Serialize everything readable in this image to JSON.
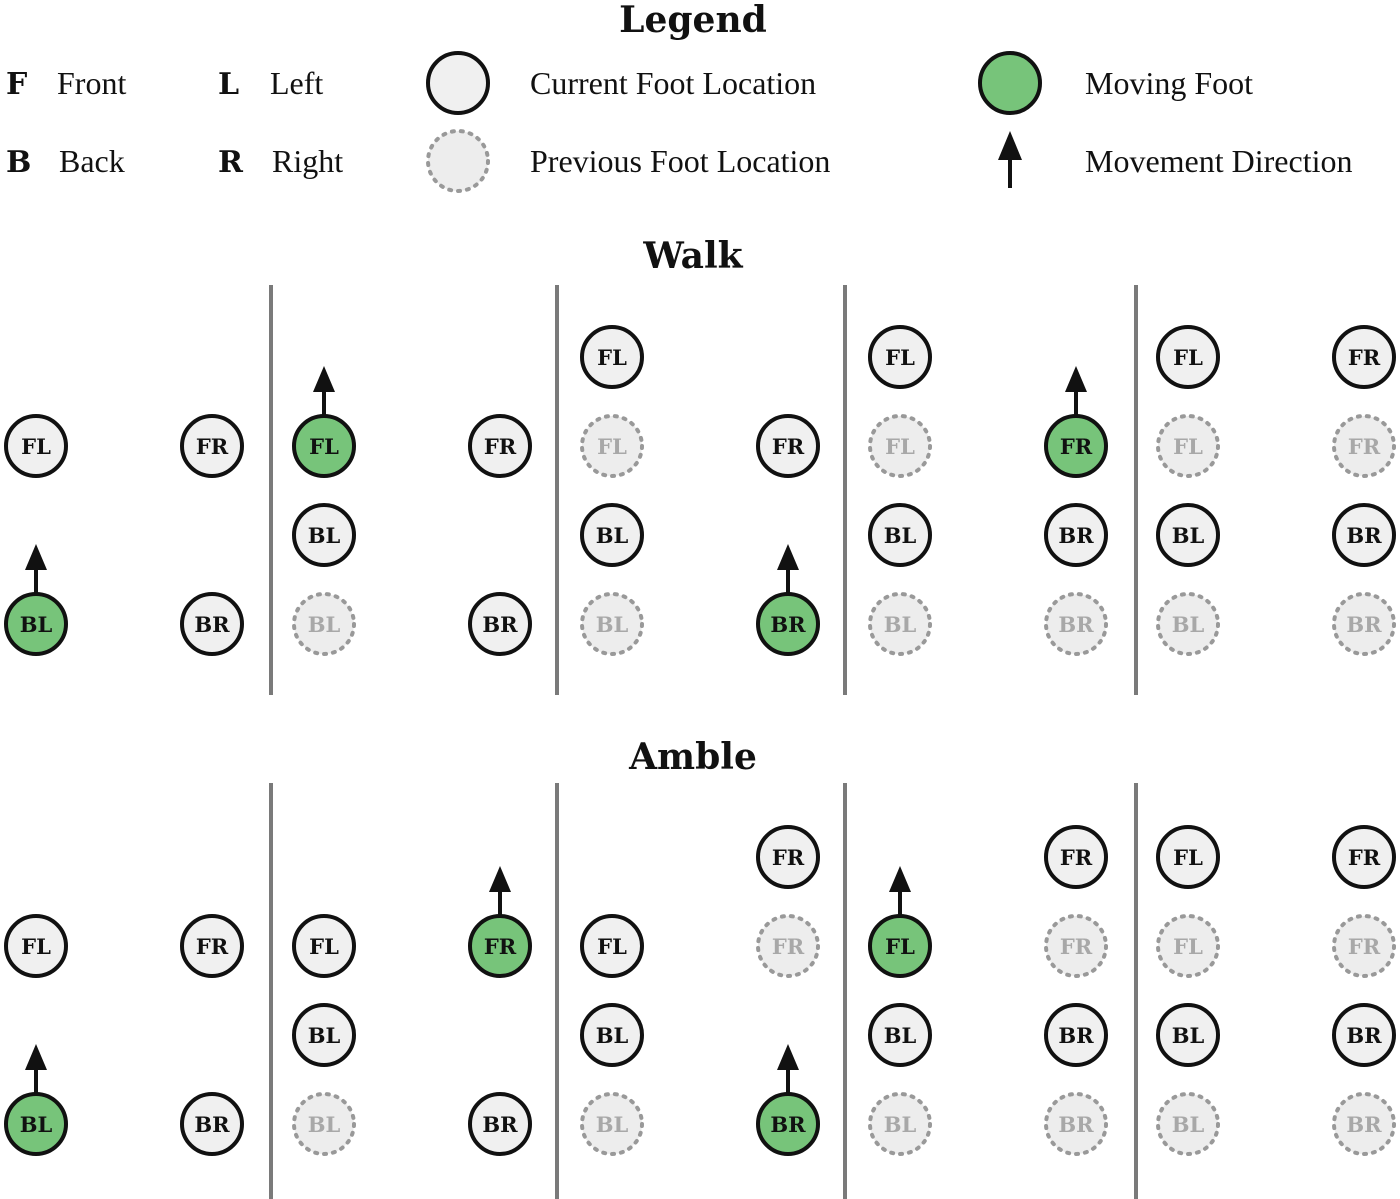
{
  "legend": {
    "title": "Legend",
    "abbreviations": [
      {
        "key": "F",
        "text": "Front"
      },
      {
        "key": "B",
        "text": "Back"
      },
      {
        "key": "L",
        "text": "Left"
      },
      {
        "key": "R",
        "text": "Right"
      }
    ],
    "symbols": [
      {
        "kind": "current",
        "text": "Current Foot Location"
      },
      {
        "kind": "previous",
        "text": "Previous Foot Location"
      },
      {
        "kind": "moving",
        "text": "Moving Foot"
      },
      {
        "kind": "arrow",
        "text": "Movement Direction"
      }
    ]
  },
  "colors": {
    "moving": "#77c47a",
    "current": "#f0f0f0",
    "previous": "#ededed",
    "stroke": "#111111",
    "previous_stroke": "#999999",
    "previous_text": "#a8a8a8",
    "divider": "#7a7a7a"
  },
  "gaits": [
    {
      "name": "Walk",
      "steps": [
        {
          "feet": [
            {
              "label": "FL",
              "state": "current",
              "col": 0,
              "row": 1
            },
            {
              "label": "FR",
              "state": "current",
              "col": 1,
              "row": 1
            },
            {
              "label": "BL",
              "state": "moving",
              "col": 0,
              "row": 3,
              "arrow": true
            },
            {
              "label": "BR",
              "state": "current",
              "col": 1,
              "row": 3
            }
          ]
        },
        {
          "feet": [
            {
              "label": "FL",
              "state": "moving",
              "col": 0,
              "row": 1,
              "arrow": true
            },
            {
              "label": "FR",
              "state": "current",
              "col": 1,
              "row": 1
            },
            {
              "label": "BL",
              "state": "current",
              "col": 0,
              "row": 2
            },
            {
              "label": "BL",
              "state": "previous",
              "col": 0,
              "row": 3
            },
            {
              "label": "BR",
              "state": "current",
              "col": 1,
              "row": 3
            }
          ]
        },
        {
          "feet": [
            {
              "label": "FL",
              "state": "current",
              "col": 0,
              "row": 0
            },
            {
              "label": "FL",
              "state": "previous",
              "col": 0,
              "row": 1
            },
            {
              "label": "FR",
              "state": "current",
              "col": 1,
              "row": 1
            },
            {
              "label": "BL",
              "state": "current",
              "col": 0,
              "row": 2
            },
            {
              "label": "BL",
              "state": "previous",
              "col": 0,
              "row": 3
            },
            {
              "label": "BR",
              "state": "moving",
              "col": 1,
              "row": 3,
              "arrow": true
            }
          ]
        },
        {
          "feet": [
            {
              "label": "FL",
              "state": "current",
              "col": 0,
              "row": 0
            },
            {
              "label": "FL",
              "state": "previous",
              "col": 0,
              "row": 1
            },
            {
              "label": "FR",
              "state": "moving",
              "col": 1,
              "row": 1,
              "arrow": true
            },
            {
              "label": "BL",
              "state": "current",
              "col": 0,
              "row": 2
            },
            {
              "label": "BR",
              "state": "current",
              "col": 1,
              "row": 2
            },
            {
              "label": "BL",
              "state": "previous",
              "col": 0,
              "row": 3
            },
            {
              "label": "BR",
              "state": "previous",
              "col": 1,
              "row": 3
            }
          ]
        },
        {
          "feet": [
            {
              "label": "FL",
              "state": "current",
              "col": 0,
              "row": 0
            },
            {
              "label": "FR",
              "state": "current",
              "col": 1,
              "row": 0
            },
            {
              "label": "FL",
              "state": "previous",
              "col": 0,
              "row": 1
            },
            {
              "label": "FR",
              "state": "previous",
              "col": 1,
              "row": 1
            },
            {
              "label": "BL",
              "state": "current",
              "col": 0,
              "row": 2
            },
            {
              "label": "BR",
              "state": "current",
              "col": 1,
              "row": 2
            },
            {
              "label": "BL",
              "state": "previous",
              "col": 0,
              "row": 3
            },
            {
              "label": "BR",
              "state": "previous",
              "col": 1,
              "row": 3
            }
          ]
        }
      ]
    },
    {
      "name": "Amble",
      "steps": [
        {
          "feet": [
            {
              "label": "FL",
              "state": "current",
              "col": 0,
              "row": 1
            },
            {
              "label": "FR",
              "state": "current",
              "col": 1,
              "row": 1
            },
            {
              "label": "BL",
              "state": "moving",
              "col": 0,
              "row": 3,
              "arrow": true
            },
            {
              "label": "BR",
              "state": "current",
              "col": 1,
              "row": 3
            }
          ]
        },
        {
          "feet": [
            {
              "label": "FL",
              "state": "current",
              "col": 0,
              "row": 1
            },
            {
              "label": "FR",
              "state": "moving",
              "col": 1,
              "row": 1,
              "arrow": true
            },
            {
              "label": "BL",
              "state": "current",
              "col": 0,
              "row": 2
            },
            {
              "label": "BL",
              "state": "previous",
              "col": 0,
              "row": 3
            },
            {
              "label": "BR",
              "state": "current",
              "col": 1,
              "row": 3
            }
          ]
        },
        {
          "feet": [
            {
              "label": "FR",
              "state": "current",
              "col": 1,
              "row": 0
            },
            {
              "label": "FL",
              "state": "current",
              "col": 0,
              "row": 1
            },
            {
              "label": "FR",
              "state": "previous",
              "col": 1,
              "row": 1
            },
            {
              "label": "BL",
              "state": "current",
              "col": 0,
              "row": 2
            },
            {
              "label": "BL",
              "state": "previous",
              "col": 0,
              "row": 3
            },
            {
              "label": "BR",
              "state": "moving",
              "col": 1,
              "row": 3,
              "arrow": true
            }
          ]
        },
        {
          "feet": [
            {
              "label": "FR",
              "state": "current",
              "col": 1,
              "row": 0
            },
            {
              "label": "FL",
              "state": "moving",
              "col": 0,
              "row": 1,
              "arrow": true
            },
            {
              "label": "FR",
              "state": "previous",
              "col": 1,
              "row": 1
            },
            {
              "label": "BL",
              "state": "current",
              "col": 0,
              "row": 2
            },
            {
              "label": "BR",
              "state": "current",
              "col": 1,
              "row": 2
            },
            {
              "label": "BL",
              "state": "previous",
              "col": 0,
              "row": 3
            },
            {
              "label": "BR",
              "state": "previous",
              "col": 1,
              "row": 3
            }
          ]
        },
        {
          "feet": [
            {
              "label": "FL",
              "state": "current",
              "col": 0,
              "row": 0
            },
            {
              "label": "FR",
              "state": "current",
              "col": 1,
              "row": 0
            },
            {
              "label": "FL",
              "state": "previous",
              "col": 0,
              "row": 1
            },
            {
              "label": "FR",
              "state": "previous",
              "col": 1,
              "row": 1
            },
            {
              "label": "BL",
              "state": "current",
              "col": 0,
              "row": 2
            },
            {
              "label": "BR",
              "state": "current",
              "col": 1,
              "row": 2
            },
            {
              "label": "BL",
              "state": "previous",
              "col": 0,
              "row": 3
            },
            {
              "label": "BR",
              "state": "previous",
              "col": 1,
              "row": 3
            }
          ]
        }
      ]
    }
  ]
}
